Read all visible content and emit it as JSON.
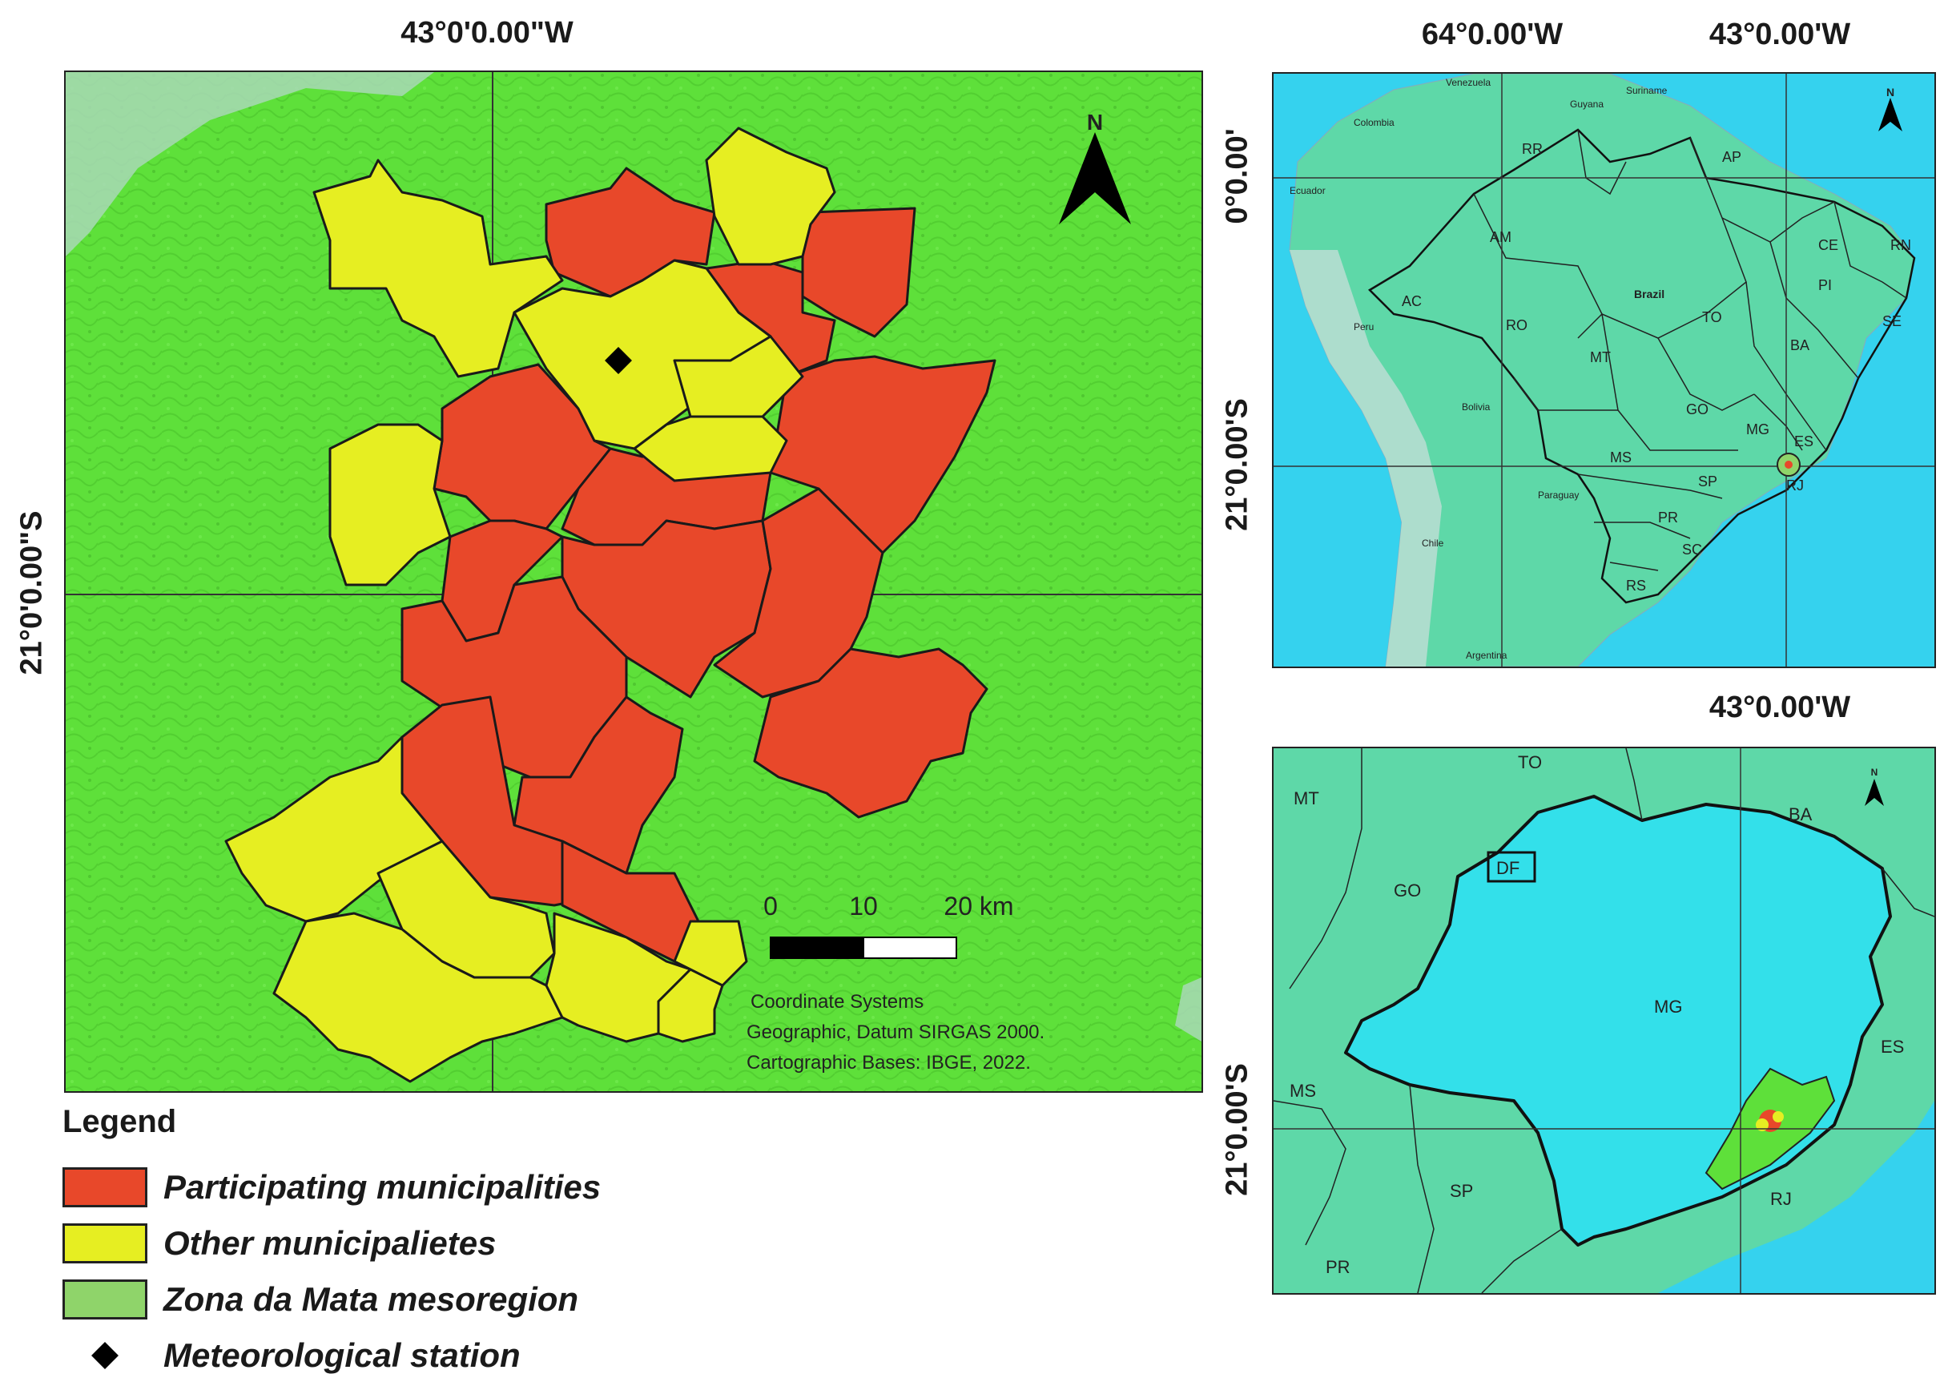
{
  "main_map": {
    "top_lon": "43°0'0.00\"W",
    "left_lat": "21°0'0.00\"S",
    "north": "N",
    "scale": {
      "zero": "0",
      "mid": "10",
      "end": "20 km"
    },
    "credits": {
      "line1": "Coordinate Systems",
      "line2": "Geographic, Datum SIRGAS 2000.",
      "line3": "Cartographic Bases: IBGE, 2022."
    }
  },
  "brazil_map": {
    "lon1": "64°0.00'W",
    "lon2": "43°0.00'W",
    "lat1": "0°0.00'",
    "lat2": "21°0.00'S",
    "north": "N",
    "country_labels": [
      "Venezuela",
      "Colombia",
      "Guyana",
      "Suriname",
      "Ecuador",
      "Peru",
      "Bolivia",
      "Paraguay",
      "Chile",
      "Argentina",
      "Brazil"
    ],
    "state_labels": [
      "RR",
      "AP",
      "AM",
      "AC",
      "RO",
      "MT",
      "TO",
      "GO",
      "MS",
      "MG",
      "SP",
      "PR",
      "SC",
      "RS",
      "BA",
      "PI",
      "CE",
      "RN",
      "SE",
      "ES",
      "RJ"
    ]
  },
  "mg_map": {
    "lon": "43°0.00'W",
    "lat": "21°0.00'S",
    "north": "N",
    "labels": [
      "TO",
      "MT",
      "BA",
      "DF",
      "GO",
      "MG",
      "ES",
      "MS",
      "SP",
      "RJ",
      "PR"
    ]
  },
  "legend": {
    "title": "Legend",
    "items": [
      {
        "label": "Participating municipalities",
        "color": "#e8482a"
      },
      {
        "label": "Other municipalietes",
        "color": "#e6ee22"
      },
      {
        "label": "Zona da Mata mesoregion",
        "color": "#8fd46a"
      },
      {
        "label": "Meteorological station",
        "color": "#000000"
      }
    ]
  },
  "colors": {
    "terrain": "#5ee03a",
    "participating": "#e8482a",
    "other": "#e6ee22",
    "ocean": "#35d2ee",
    "land": "#5ed8a8",
    "minas": "#33e0ea"
  }
}
